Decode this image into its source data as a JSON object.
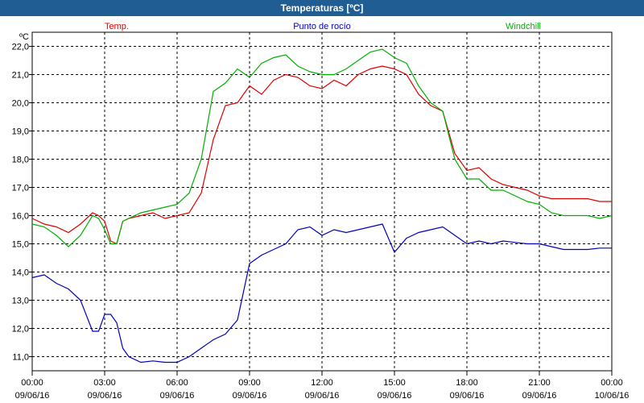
{
  "window": {
    "title": "Temperaturas [ºC]"
  },
  "chart_data": {
    "type": "line",
    "title": "Temperaturas [ºC]",
    "ylabel": "ºC",
    "xlabel": "",
    "ylim": [
      10.5,
      22.5
    ],
    "yticks": [
      "22,0",
      "21,0",
      "20,0",
      "19,0",
      "18,0",
      "17,0",
      "16,0",
      "15,0",
      "14,0",
      "13,0",
      "12,0",
      "11,0"
    ],
    "ytick_values": [
      22,
      21,
      20,
      19,
      18,
      17,
      16,
      15,
      14,
      13,
      12,
      11
    ],
    "xlim": [
      0,
      24
    ],
    "xtick_values": [
      0,
      3,
      6,
      9,
      12,
      15,
      18,
      21,
      24
    ],
    "xticks_time": [
      "00:00",
      "03:00",
      "06:00",
      "09:00",
      "12:00",
      "15:00",
      "18:00",
      "21:00",
      "00:00"
    ],
    "xticks_date": [
      "09/06/16",
      "09/06/16",
      "09/06/16",
      "09/06/16",
      "09/06/16",
      "09/06/16",
      "09/06/16",
      "09/06/16",
      "10/06/16"
    ],
    "grid": true,
    "legend_position": "top",
    "x": [
      0,
      0.5,
      1,
      1.5,
      2,
      2.5,
      2.75,
      3,
      3.25,
      3.5,
      3.75,
      4,
      4.5,
      5,
      5.5,
      6,
      6.5,
      7,
      7.5,
      8,
      8.5,
      9,
      9.5,
      10,
      10.5,
      11,
      11.5,
      12,
      12.5,
      13,
      13.5,
      14,
      14.5,
      15,
      15.5,
      16,
      16.5,
      17,
      17.5,
      18,
      18.5,
      19,
      19.5,
      20,
      20.5,
      21,
      21.5,
      22,
      22.5,
      23,
      23.5,
      24
    ],
    "series": [
      {
        "name": "Temp.",
        "color": "#e00000",
        "values": [
          15.9,
          15.7,
          15.6,
          15.4,
          15.7,
          16.1,
          16.0,
          15.8,
          15.1,
          15.0,
          15.8,
          15.9,
          16.0,
          16.1,
          15.9,
          16.0,
          16.1,
          16.8,
          18.7,
          19.9,
          20.0,
          20.6,
          20.3,
          20.8,
          21.0,
          20.9,
          20.6,
          20.5,
          20.8,
          20.6,
          21.0,
          21.2,
          21.3,
          21.2,
          21.0,
          20.3,
          19.9,
          19.7,
          18.2,
          17.6,
          17.7,
          17.3,
          17.1,
          17.0,
          16.9,
          16.7,
          16.6,
          16.6,
          16.6,
          16.6,
          16.5,
          16.5
        ]
      },
      {
        "name": "Punto de rocío",
        "color": "#0000c0",
        "values": [
          13.8,
          13.9,
          13.6,
          13.4,
          13.0,
          11.9,
          11.9,
          12.5,
          12.5,
          12.2,
          11.3,
          11.0,
          10.8,
          10.85,
          10.8,
          10.8,
          11.0,
          11.3,
          11.6,
          11.8,
          12.3,
          14.3,
          14.6,
          14.8,
          15.0,
          15.5,
          15.6,
          15.3,
          15.5,
          15.4,
          15.5,
          15.6,
          15.7,
          14.7,
          15.2,
          15.4,
          15.5,
          15.6,
          15.3,
          15.0,
          15.1,
          15.0,
          15.1,
          15.05,
          15.0,
          15.0,
          14.9,
          14.8,
          14.8,
          14.8,
          14.85,
          14.85
        ]
      },
      {
        "name": "Windchill",
        "color": "#00b000",
        "values": [
          15.7,
          15.6,
          15.3,
          14.9,
          15.3,
          16.0,
          15.9,
          15.5,
          15.0,
          15.0,
          15.8,
          15.9,
          16.1,
          16.2,
          16.3,
          16.4,
          16.8,
          18.0,
          20.4,
          20.7,
          21.2,
          20.9,
          21.4,
          21.6,
          21.7,
          21.3,
          21.1,
          21.0,
          21.0,
          21.2,
          21.5,
          21.8,
          21.9,
          21.6,
          21.4,
          20.6,
          20.0,
          19.7,
          18.0,
          17.3,
          17.3,
          16.9,
          16.9,
          16.7,
          16.5,
          16.4,
          16.1,
          16.0,
          16.0,
          16.0,
          15.9,
          16.0
        ]
      }
    ]
  }
}
